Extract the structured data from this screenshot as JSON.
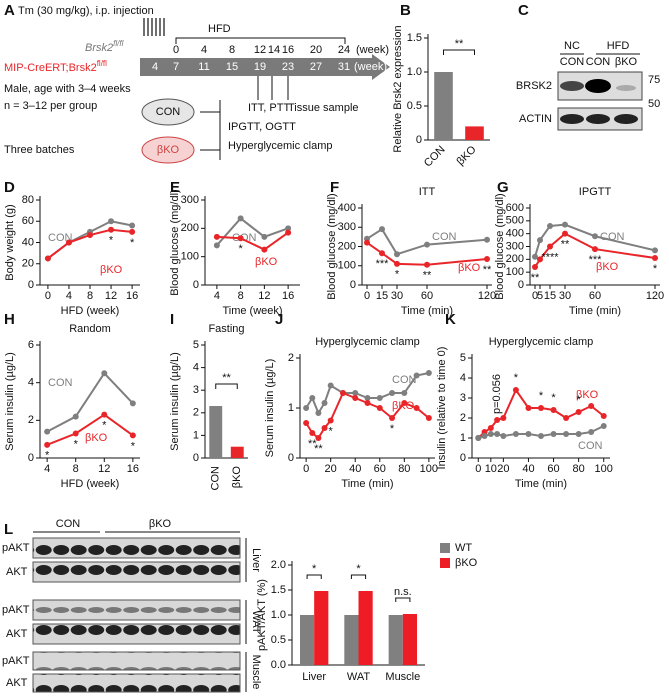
{
  "schematic": {
    "panel": "A",
    "injection": "Tm (30 mg/kg), i.p. injection",
    "diet": "HFD",
    "diet_weeks": [
      0,
      4,
      8,
      12,
      14,
      16,
      20,
      24
    ],
    "age_weeks": [
      4,
      7,
      11,
      15,
      19,
      23,
      27,
      31
    ],
    "unit": "(week)",
    "genotypes": [
      [
        "Brsk2",
        "fl/fl"
      ],
      [
        "MIP-CreERT;Brsk2",
        "fl/fl"
      ]
    ],
    "details": [
      "Male, age with 3–4 weeks",
      "n = 3–12 per group"
    ],
    "batches": "Three batches",
    "groups": [
      "CON",
      "βKO"
    ],
    "tests": [
      "ITT, PTT",
      "IPGTT, OGTT",
      "Hyperglycemic clamp"
    ],
    "tissue": "Tissue sample"
  },
  "blot_c": {
    "panel": "C",
    "groups": [
      "NC",
      "HFD"
    ],
    "lanes": [
      "CON",
      "CON",
      "βKO"
    ],
    "proteins": [
      "BRSK2",
      "ACTIN"
    ],
    "markers": [
      75,
      50
    ]
  },
  "blot_l": {
    "panel": "L",
    "groups": [
      "CON",
      "βKO"
    ],
    "rows": [
      "pAKT",
      "AKT",
      "pAKT",
      "AKT",
      "pAKT",
      "AKT"
    ],
    "tissues": [
      "Liver",
      "WAT",
      "Muscle"
    ]
  },
  "chart_data": [
    {
      "panel": "B",
      "type": "bar",
      "ylabel": "Relative Brsk2 expression",
      "categories": [
        "CON",
        "βKO"
      ],
      "values": [
        1.0,
        0.2
      ],
      "colors": [
        "#808080",
        "#e8262a"
      ],
      "ylim": [
        0,
        1.5
      ],
      "yticks": [
        0,
        0.5,
        {
          "value": 1,
          "label": "1.0"
        },
        1.5
      ],
      "annotation": "**"
    },
    {
      "panel": "D",
      "type": "line",
      "ylabel": "Body weight (g)",
      "xlabel": "HFD (week)",
      "x": [
        0,
        4,
        8,
        12,
        16
      ],
      "xlim": [
        -1.5,
        17.5
      ],
      "xticks": [
        0,
        4,
        8,
        12,
        16
      ],
      "ylim": [
        0,
        80
      ],
      "yticks": [
        0,
        20,
        40,
        60,
        80
      ],
      "series": [
        {
          "name": "CON",
          "color": "#7f7f7f",
          "values": [
            25,
            40,
            50,
            60,
            56
          ]
        },
        {
          "name": "βKO",
          "color": "#e8262a",
          "values": [
            25,
            40,
            47,
            52,
            50
          ]
        }
      ],
      "annotations": [
        {
          "text": "*",
          "x": 12
        },
        {
          "text": "*",
          "x": 16
        }
      ]
    },
    {
      "panel": "E",
      "type": "line",
      "ylabel": "Blood glucose (mg/dl)",
      "xlabel": "Time (week)",
      "x": [
        4,
        8,
        12,
        16
      ],
      "xlim": [
        2,
        18
      ],
      "xticks": [
        4,
        8,
        12,
        16
      ],
      "ylim": [
        0,
        300
      ],
      "yticks": [
        0,
        100,
        200,
        300
      ],
      "series": [
        {
          "name": "CON",
          "color": "#7f7f7f",
          "values": [
            140,
            235,
            170,
            200
          ]
        },
        {
          "name": "βKO",
          "color": "#e8262a",
          "values": [
            170,
            165,
            125,
            185
          ]
        }
      ],
      "annotations": [
        {
          "text": "*",
          "x": 8
        }
      ]
    },
    {
      "panel": "F",
      "type": "line",
      "title": "ITT",
      "ylabel": "Blood glucose (mg/dl)",
      "xlabel": "Time (min)",
      "x": [
        0,
        15,
        30,
        60,
        120
      ],
      "xlim": [
        -5,
        125
      ],
      "xticks": [
        0,
        15,
        30,
        60,
        120
      ],
      "ylim": [
        0,
        400
      ],
      "yticks": [
        0,
        100,
        200,
        300,
        400
      ],
      "series": [
        {
          "name": "CON",
          "color": "#7f7f7f",
          "values": [
            240,
            290,
            160,
            210,
            235
          ]
        },
        {
          "name": "βKO",
          "color": "#e8262a",
          "values": [
            220,
            165,
            110,
            105,
            135
          ]
        }
      ],
      "annotations": [
        {
          "text": "***",
          "x": 15
        },
        {
          "text": "*",
          "x": 30
        },
        {
          "text": "**",
          "x": 60
        },
        {
          "text": "**",
          "x": 120
        }
      ]
    },
    {
      "panel": "G",
      "type": "line",
      "title": "IPGTT",
      "ylabel": "Blood glucose (mg/dl)",
      "xlabel": "Time (min)",
      "x": [
        0,
        5,
        15,
        30,
        60,
        120
      ],
      "xlim": [
        -5,
        125
      ],
      "xticks": [
        0,
        5,
        15,
        30,
        60,
        120
      ],
      "ylim": [
        0,
        600
      ],
      "yticks": [
        0,
        100,
        200,
        300,
        400,
        500,
        600
      ],
      "series": [
        {
          "name": "CON",
          "color": "#7f7f7f",
          "values": [
            220,
            350,
            460,
            470,
            380,
            270
          ]
        },
        {
          "name": "βKO",
          "color": "#e8262a",
          "values": [
            140,
            200,
            300,
            400,
            280,
            210
          ]
        }
      ],
      "annotations": [
        {
          "text": "**",
          "x": 0
        },
        {
          "text": "****",
          "x": 15
        },
        {
          "text": "**",
          "x": 30
        },
        {
          "text": "***",
          "x": 60
        },
        {
          "text": "*",
          "x": 120
        }
      ]
    },
    {
      "panel": "H",
      "type": "line",
      "title": "Random",
      "ylabel": "Serum insulin (µg/L)",
      "xlabel": "HFD (week)",
      "x": [
        4,
        8,
        12,
        16
      ],
      "xlim": [
        3,
        17
      ],
      "xticks": [
        4,
        8,
        12,
        16
      ],
      "ylim": [
        0,
        6
      ],
      "yticks": [
        0,
        2,
        4,
        6
      ],
      "series": [
        {
          "name": "CON",
          "color": "#7f7f7f",
          "values": [
            1.4,
            2.2,
            4.5,
            2.9
          ]
        },
        {
          "name": "βKO",
          "color": "#e8262a",
          "values": [
            0.7,
            1.3,
            2.3,
            1.2
          ]
        }
      ],
      "annotations": [
        {
          "text": "*",
          "x": 4
        },
        {
          "text": "*",
          "x": 8
        },
        {
          "text": "*",
          "x": 12
        },
        {
          "text": "*",
          "x": 16
        }
      ]
    },
    {
      "panel": "I",
      "type": "bar",
      "title": "Fasting",
      "ylabel": "Serum insulin (µg/L)",
      "categories": [
        "CON",
        "βKO"
      ],
      "values": [
        2.3,
        0.5
      ],
      "colors": [
        "#808080",
        "#e8262a"
      ],
      "ylim": [
        0,
        5
      ],
      "yticks": [
        0,
        1,
        2,
        3,
        4,
        5
      ],
      "annotation": "**"
    },
    {
      "panel": "J",
      "type": "line",
      "title": "Hyperglycemic clamp",
      "ylabel": "Serum insulin (µg/L)",
      "xlabel": "Time (min)",
      "x": [
        0,
        5,
        10,
        15,
        20,
        30,
        40,
        50,
        60,
        70,
        80,
        90,
        100
      ],
      "xlim": [
        -5,
        105
      ],
      "xticks": [
        0,
        20,
        40,
        60,
        80,
        100
      ],
      "ylim": [
        0,
        2
      ],
      "yticks": [
        0,
        1,
        2
      ],
      "series": [
        {
          "name": "CON",
          "color": "#7f7f7f",
          "values": [
            1.0,
            1.2,
            0.9,
            1.1,
            1.45,
            1.3,
            1.3,
            1.2,
            1.2,
            1.3,
            1.3,
            1.65,
            1.7
          ]
        },
        {
          "name": "βKO",
          "color": "#e8262a",
          "values": [
            0.7,
            0.5,
            0.4,
            0.6,
            0.75,
            1.3,
            1.2,
            1.1,
            1.0,
            0.8,
            1.1,
            1.0,
            0.8
          ]
        }
      ],
      "annotations": [
        {
          "text": "**",
          "x": 5
        },
        {
          "text": "**",
          "x": 10
        },
        {
          "text": "*",
          "x": 20
        },
        {
          "text": "*",
          "x": 70
        }
      ]
    },
    {
      "panel": "K",
      "type": "line",
      "title": "Hyperglycemic clamp",
      "ylabel": "Insulin (relative to time 0)",
      "xlabel": "Time (min)",
      "x": [
        0,
        5,
        10,
        15,
        20,
        30,
        40,
        50,
        60,
        70,
        80,
        90,
        100
      ],
      "xlim": [
        -5,
        105
      ],
      "xticks": [
        0,
        10,
        20,
        40,
        60,
        80,
        100
      ],
      "ylim": [
        0,
        5
      ],
      "yticks": [
        0,
        1,
        2,
        3,
        4,
        5
      ],
      "series": [
        {
          "name": "βKO",
          "color": "#e8262a",
          "values": [
            1.0,
            1.3,
            1.5,
            1.9,
            2.0,
            3.4,
            2.5,
            2.5,
            2.4,
            2.0,
            2.3,
            2.6,
            2.1
          ]
        },
        {
          "name": "CON",
          "color": "#7f7f7f",
          "values": [
            1.0,
            1.1,
            1.2,
            1.2,
            1.1,
            1.2,
            1.2,
            1.1,
            1.2,
            1.2,
            1.2,
            1.3,
            1.6
          ]
        }
      ],
      "annotations": [
        {
          "text": "p=0.056",
          "x": 15
        },
        {
          "text": "*",
          "x": 30
        },
        {
          "text": "*",
          "x": 50
        },
        {
          "text": "*",
          "x": 60
        },
        {
          "text": "*",
          "x": 80
        }
      ]
    },
    {
      "type": "grouped_bar",
      "ylabel": "pAKT/AKT (%)",
      "categories": [
        "Liver",
        "WAT",
        "Muscle"
      ],
      "ylim": [
        0,
        2
      ],
      "yticks": [
        {
          "value": 0,
          "label": "0.0"
        },
        0.5,
        {
          "value": 1,
          "label": "1.0"
        },
        1.5,
        {
          "value": 2,
          "label": "2.0"
        }
      ],
      "series": [
        {
          "name": "WT",
          "color": "#808080",
          "values": [
            1.0,
            1.0,
            1.0
          ]
        },
        {
          "name": "βKO",
          "color": "#ee1c24",
          "values": [
            1.48,
            1.48,
            1.02
          ]
        }
      ],
      "annotations": [
        "*",
        "*",
        "n.s."
      ],
      "legend": true
    }
  ]
}
